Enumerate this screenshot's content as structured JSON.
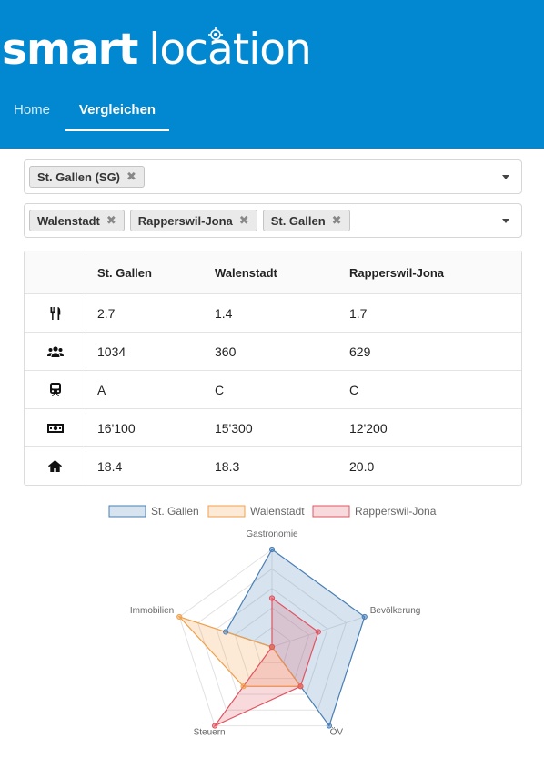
{
  "header": {
    "logo_bold": "smart",
    "logo_light": "location",
    "nav": [
      {
        "label": "Home",
        "active": false
      },
      {
        "label": "Vergleichen",
        "active": true
      }
    ]
  },
  "selectors": {
    "primary": {
      "chips": [
        "St. Gallen (SG)"
      ]
    },
    "compare": {
      "chips": [
        "Walenstadt",
        "Rapperswil-Jona",
        "St. Gallen"
      ]
    }
  },
  "table": {
    "columns": [
      "St. Gallen",
      "Walenstadt",
      "Rapperswil-Jona"
    ],
    "rows": [
      {
        "icon": "cutlery-icon",
        "values": [
          "2.7",
          "1.4",
          "1.7"
        ]
      },
      {
        "icon": "users-icon",
        "values": [
          "1034",
          "360",
          "629"
        ]
      },
      {
        "icon": "train-icon",
        "values": [
          "A",
          "C",
          "C"
        ]
      },
      {
        "icon": "money-icon",
        "values": [
          "16'100",
          "15'300",
          "12'200"
        ]
      },
      {
        "icon": "home-icon",
        "values": [
          "18.4",
          "18.3",
          "20.0"
        ]
      }
    ]
  },
  "chart_data": {
    "type": "radar",
    "axes": [
      "Gastronomie",
      "Bevölkerung",
      "ÖV",
      "Steuern",
      "Immobilien"
    ],
    "range": [
      0,
      5
    ],
    "gridlines": true,
    "legend_position": "top",
    "series": [
      {
        "name": "St. Gallen",
        "values": [
          5,
          5,
          5,
          0,
          2.5
        ],
        "color": "#4a7fb5",
        "fill": "rgba(74,127,181,0.22)"
      },
      {
        "name": "Walenstadt",
        "values": [
          0,
          0,
          2.5,
          2.5,
          5
        ],
        "color": "#f0a04b",
        "fill": "rgba(240,160,75,0.22)"
      },
      {
        "name": "Rapperswil-Jona",
        "values": [
          2.5,
          2.5,
          2.5,
          5,
          0
        ],
        "color": "#e05562",
        "fill": "rgba(224,85,98,0.22)"
      }
    ]
  }
}
